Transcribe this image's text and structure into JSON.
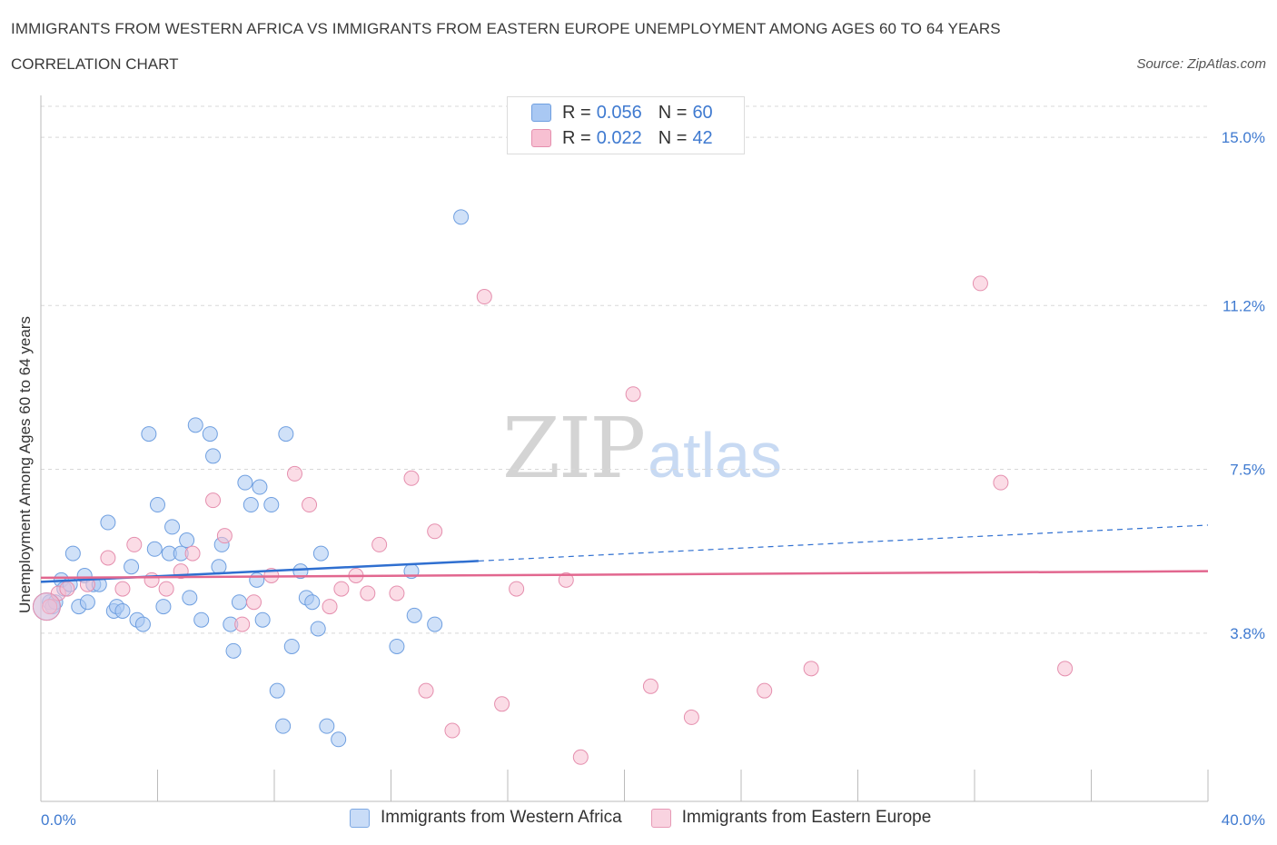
{
  "title": "IMMIGRANTS FROM WESTERN AFRICA VS IMMIGRANTS FROM EASTERN EUROPE UNEMPLOYMENT AMONG AGES 60 TO 64 YEARS",
  "subtitle": "CORRELATION CHART",
  "source": "Source: ZipAtlas.com",
  "watermark": {
    "zip": "ZIP",
    "atlas": "atlas"
  },
  "legend_top": {
    "rows": [
      {
        "r_key": "R =",
        "r_val": "0.056",
        "n_key": "N =",
        "n_val": "60",
        "color": "#a9c8f3"
      },
      {
        "r_key": "R =",
        "r_val": "0.022",
        "n_key": "N =",
        "n_val": "42",
        "color": "#f7c0d2"
      }
    ]
  },
  "colors": {
    "blue_fill": "#a9c8f3",
    "blue_stroke": "#6f9fe0",
    "blue_line": "#2f6fd0",
    "pink_fill": "#f7c0d2",
    "pink_stroke": "#e58fae",
    "pink_line": "#e2678f",
    "tick_text": "#3f7ad0",
    "grid": "#d8d8d8"
  },
  "chart_data": {
    "type": "scatter",
    "title": "",
    "xlabel": "",
    "ylabel": "Unemployment Among Ages 60 to 64 years",
    "xlim": [
      0,
      40
    ],
    "ylim": [
      0,
      15
    ],
    "x_tick_labels": [
      "0.0%",
      "40.0%"
    ],
    "y_ticks": [
      3.8,
      7.5,
      11.2,
      15.0
    ],
    "y_tick_labels": [
      "3.8%",
      "7.5%",
      "11.2%",
      "15.0%"
    ],
    "grid": true,
    "legend_placement": "bottom",
    "series": [
      {
        "name": "Immigrants from Western Africa",
        "color": "#a9c8f3",
        "points": [
          [
            0.3,
            4.5
          ],
          [
            0.4,
            4.4
          ],
          [
            0.5,
            4.5
          ],
          [
            0.7,
            5.0
          ],
          [
            0.8,
            4.8
          ],
          [
            1.0,
            4.9
          ],
          [
            1.1,
            5.6
          ],
          [
            1.3,
            4.4
          ],
          [
            1.5,
            5.1
          ],
          [
            1.6,
            4.5
          ],
          [
            1.8,
            4.9
          ],
          [
            2.0,
            4.9
          ],
          [
            2.3,
            6.3
          ],
          [
            2.5,
            4.3
          ],
          [
            2.6,
            4.4
          ],
          [
            2.8,
            4.3
          ],
          [
            3.1,
            5.3
          ],
          [
            3.3,
            4.1
          ],
          [
            3.5,
            4.0
          ],
          [
            3.7,
            8.3
          ],
          [
            4.0,
            6.7
          ],
          [
            3.9,
            5.7
          ],
          [
            4.2,
            4.4
          ],
          [
            4.4,
            5.6
          ],
          [
            4.5,
            6.2
          ],
          [
            4.8,
            5.6
          ],
          [
            5.0,
            5.9
          ],
          [
            5.1,
            4.6
          ],
          [
            5.3,
            8.5
          ],
          [
            5.5,
            4.1
          ],
          [
            5.8,
            8.3
          ],
          [
            5.9,
            7.8
          ],
          [
            6.1,
            5.3
          ],
          [
            6.2,
            5.8
          ],
          [
            6.5,
            4.0
          ],
          [
            6.6,
            3.4
          ],
          [
            6.8,
            4.5
          ],
          [
            7.0,
            7.2
          ],
          [
            7.2,
            6.7
          ],
          [
            7.4,
            5.0
          ],
          [
            7.5,
            7.1
          ],
          [
            7.6,
            4.1
          ],
          [
            7.9,
            6.7
          ],
          [
            8.1,
            2.5
          ],
          [
            8.3,
            1.7
          ],
          [
            8.4,
            8.3
          ],
          [
            8.6,
            3.5
          ],
          [
            8.9,
            5.2
          ],
          [
            9.1,
            4.6
          ],
          [
            9.3,
            4.5
          ],
          [
            9.5,
            3.9
          ],
          [
            9.6,
            5.6
          ],
          [
            9.8,
            1.7
          ],
          [
            10.2,
            1.4
          ],
          [
            12.2,
            3.5
          ],
          [
            12.7,
            5.2
          ],
          [
            12.8,
            4.2
          ],
          [
            13.5,
            4.0
          ],
          [
            14.4,
            13.2
          ],
          [
            0.2,
            4.4
          ]
        ],
        "trend": {
          "x0": 0,
          "y0": 4.96,
          "x1": 15.0,
          "y1": 5.43,
          "dashed_to_x": 40,
          "dashed_to_y": 6.24
        }
      },
      {
        "name": "Immigrants from Eastern Europe",
        "color": "#f7c0d2",
        "points": [
          [
            0.3,
            4.4
          ],
          [
            0.6,
            4.7
          ],
          [
            0.9,
            4.8
          ],
          [
            1.6,
            4.9
          ],
          [
            2.3,
            5.5
          ],
          [
            2.8,
            4.8
          ],
          [
            3.2,
            5.8
          ],
          [
            3.8,
            5.0
          ],
          [
            4.3,
            4.8
          ],
          [
            4.8,
            5.2
          ],
          [
            5.2,
            5.6
          ],
          [
            5.9,
            6.8
          ],
          [
            6.3,
            6.0
          ],
          [
            6.9,
            4.0
          ],
          [
            7.3,
            4.5
          ],
          [
            7.9,
            5.1
          ],
          [
            8.7,
            7.4
          ],
          [
            9.2,
            6.7
          ],
          [
            9.9,
            4.4
          ],
          [
            10.3,
            4.8
          ],
          [
            10.8,
            5.1
          ],
          [
            11.2,
            4.7
          ],
          [
            11.6,
            5.8
          ],
          [
            12.2,
            4.7
          ],
          [
            12.7,
            7.3
          ],
          [
            13.2,
            2.5
          ],
          [
            13.5,
            6.1
          ],
          [
            14.1,
            1.6
          ],
          [
            15.2,
            11.4
          ],
          [
            15.8,
            2.2
          ],
          [
            16.3,
            4.8
          ],
          [
            18.0,
            5.0
          ],
          [
            18.5,
            1.0
          ],
          [
            20.3,
            9.2
          ],
          [
            20.9,
            2.6
          ],
          [
            22.3,
            1.9
          ],
          [
            24.8,
            2.5
          ],
          [
            26.4,
            3.0
          ],
          [
            32.2,
            11.7
          ],
          [
            32.9,
            7.2
          ],
          [
            35.1,
            3.0
          ],
          [
            0.2,
            4.4
          ]
        ],
        "trend": {
          "x0": 0,
          "y0": 5.05,
          "x1": 40,
          "y1": 5.2
        }
      }
    ]
  }
}
